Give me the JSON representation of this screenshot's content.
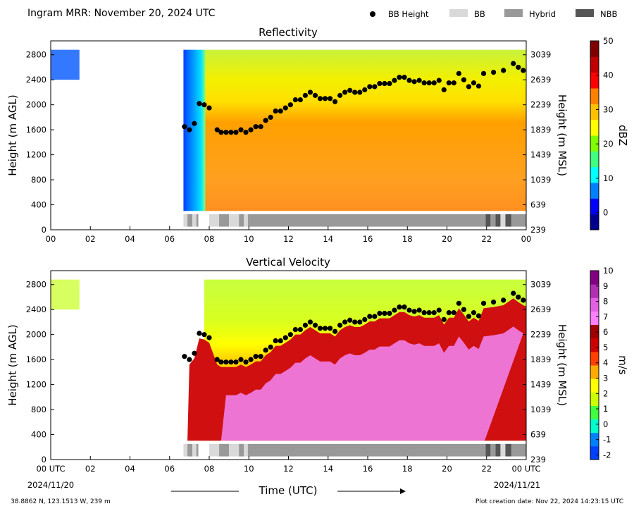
{
  "header": {
    "title": "Ingram MRR:  November 20, 2024 UTC",
    "legend": [
      {
        "label": "BB Height",
        "kind": "dot",
        "color": "#000000"
      },
      {
        "label": "BB",
        "kind": "box",
        "color": "#d9d9d9"
      },
      {
        "label": "Hybrid",
        "kind": "box",
        "color": "#999999"
      },
      {
        "label": "NBB",
        "kind": "box",
        "color": "#555555"
      }
    ]
  },
  "chart_data": [
    {
      "type": "heatmap",
      "title": "Reflectivity",
      "ylabel": "Height (m AGL)",
      "ylabel_right": "Height (m MSL)",
      "x_ticks": [
        "00",
        "02",
        "04",
        "06",
        "08",
        "10",
        "12",
        "14",
        "16",
        "18",
        "20",
        "22",
        "00"
      ],
      "y_ticks": [
        "0",
        "400",
        "800",
        "1200",
        "1600",
        "2000",
        "2400",
        "2800"
      ],
      "y2_ticks": [
        "239",
        "639",
        "1039",
        "1439",
        "1839",
        "2239",
        "2639",
        "3039"
      ],
      "ylim": [
        0,
        3000
      ],
      "xlim_hours": [
        0,
        24
      ],
      "colorbar": {
        "label": "dBZ",
        "min": -5,
        "max": 50,
        "ticks": [
          "0",
          "10",
          "20",
          "30",
          "40",
          "50"
        ],
        "colors": [
          "#00008f",
          "#0000ff",
          "#0080ff",
          "#00ffff",
          "#40ff80",
          "#80ff00",
          "#ffff00",
          "#ffc000",
          "#ff8000",
          "#ff0000",
          "#bf0000",
          "#800000"
        ]
      }
    },
    {
      "type": "heatmap",
      "title": "Vertical Velocity",
      "ylabel": "Height (m AGL)",
      "ylabel_right": "Height (m MSL)",
      "x_ticks": [
        "00 UTC",
        "02",
        "04",
        "06",
        "08",
        "10",
        "12",
        "14",
        "16",
        "18",
        "20",
        "22",
        "00 UTC"
      ],
      "x_date_left": "2024/11/20",
      "x_date_right": "2024/11/21",
      "y_ticks": [
        "0",
        "400",
        "800",
        "1200",
        "1600",
        "2000",
        "2400",
        "2800"
      ],
      "y2_ticks": [
        "239",
        "639",
        "1039",
        "1439",
        "1839",
        "2239",
        "2639",
        "3039"
      ],
      "ylim": [
        0,
        3000
      ],
      "xlim_hours": [
        0,
        24
      ],
      "colorbar": {
        "label": "m/s",
        "min": -2.3,
        "max": 10,
        "ticks": [
          "-2",
          "-1",
          "0",
          "1",
          "2",
          "3",
          "4",
          "5",
          "6",
          "7",
          "8",
          "9",
          "10"
        ],
        "colors": [
          "#0040ff",
          "#0080ff",
          "#00ffcc",
          "#40ff40",
          "#ccff00",
          "#ffff00",
          "#ffaa00",
          "#ff4000",
          "#cc0000",
          "#a00000",
          "#ff80ff",
          "#e060e0",
          "#b030b0",
          "#800080"
        ]
      }
    }
  ],
  "bb_height": {
    "hours": [
      6.75,
      7.0,
      7.25,
      7.5,
      7.75,
      8.0,
      8.4,
      8.6,
      8.85,
      9.1,
      9.35,
      9.6,
      9.85,
      10.1,
      10.35,
      10.6,
      10.85,
      11.1,
      11.35,
      11.6,
      11.85,
      12.1,
      12.35,
      12.6,
      12.85,
      13.1,
      13.35,
      13.6,
      13.85,
      14.1,
      14.35,
      14.6,
      14.85,
      15.1,
      15.35,
      15.6,
      15.85,
      16.1,
      16.35,
      16.6,
      16.85,
      17.1,
      17.35,
      17.6,
      17.85,
      18.1,
      18.35,
      18.6,
      18.85,
      19.1,
      19.35,
      19.6,
      19.85,
      20.1,
      20.35,
      20.6,
      20.85,
      21.1,
      21.35,
      21.6,
      21.85,
      22.35,
      22.85,
      23.35,
      23.6,
      23.85
    ],
    "heights": [
      1650,
      1600,
      1700,
      2020,
      2000,
      1950,
      1600,
      1560,
      1560,
      1560,
      1560,
      1600,
      1560,
      1600,
      1650,
      1650,
      1750,
      1800,
      1900,
      1900,
      1950,
      2000,
      2080,
      2080,
      2150,
      2200,
      2150,
      2100,
      2100,
      2100,
      2050,
      2150,
      2200,
      2230,
      2200,
      2200,
      2240,
      2290,
      2290,
      2340,
      2340,
      2340,
      2390,
      2440,
      2440,
      2390,
      2370,
      2390,
      2350,
      2350,
      2350,
      2390,
      2240,
      2350,
      2350,
      2500,
      2400,
      2290,
      2350,
      2300,
      2500,
      2520,
      2550,
      2660,
      2600,
      2550
    ]
  },
  "bb_classification": {
    "label": "BB classification strip",
    "segments": [
      {
        "start": 6.7,
        "end": 6.9,
        "class": "BB"
      },
      {
        "start": 6.9,
        "end": 7.15,
        "class": "Hybrid"
      },
      {
        "start": 7.15,
        "end": 7.35,
        "class": "BB"
      },
      {
        "start": 7.35,
        "end": 7.45,
        "class": "Hybrid"
      },
      {
        "start": 8.0,
        "end": 8.5,
        "class": "BB"
      },
      {
        "start": 8.5,
        "end": 9.0,
        "class": "Hybrid"
      },
      {
        "start": 9.0,
        "end": 9.5,
        "class": "BB"
      },
      {
        "start": 9.5,
        "end": 9.75,
        "class": "Hybrid"
      },
      {
        "start": 9.75,
        "end": 9.95,
        "class": "BB"
      },
      {
        "start": 9.95,
        "end": 21.95,
        "class": "Hybrid"
      },
      {
        "start": 21.95,
        "end": 22.2,
        "class": "NBB"
      },
      {
        "start": 22.2,
        "end": 22.45,
        "class": "Hybrid"
      },
      {
        "start": 22.45,
        "end": 22.7,
        "class": "NBB"
      },
      {
        "start": 22.7,
        "end": 22.95,
        "class": "BB"
      },
      {
        "start": 22.95,
        "end": 23.25,
        "class": "NBB"
      },
      {
        "start": 23.25,
        "end": 24.0,
        "class": "Hybrid"
      }
    ]
  },
  "footer": {
    "xlabel": "Time (UTC)",
    "location": "38.8862 N, 123.1513 W, 239 m",
    "created": "Plot creation date: Nov 22, 2024 14:23:15 UTC"
  }
}
